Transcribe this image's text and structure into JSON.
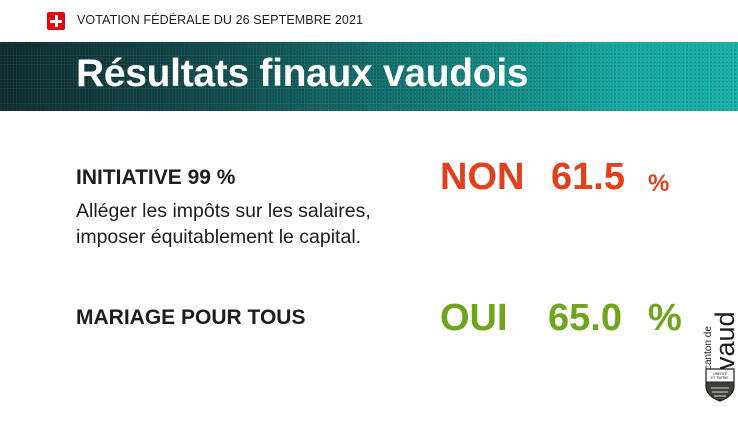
{
  "header": {
    "label": "VOTATION FÉDÉRALE DU 26 SEPTEMBRE 2021",
    "flag_icon": "swiss-flag-icon"
  },
  "banner": {
    "title": "Résultats finaux vaudois"
  },
  "votes": [
    {
      "title": "INITIATIVE 99 %",
      "subtitle_line1": "Alléger les impôts sur les salaires,",
      "subtitle_line2": "imposer équitablement le capital.",
      "result": "NON",
      "percent_value": "61.5",
      "percent_sign": "%",
      "color": "#e2401c"
    },
    {
      "title": "MARIAGE POUR TOUS",
      "result": "OUI",
      "percent_value": "65.0",
      "percent_sign": "%",
      "color": "#6fa51c"
    }
  ],
  "logo": {
    "canton": "canton de",
    "name": "vaud",
    "motto_line1": "LIBERTÉ",
    "motto_line2": "ET PATRIE"
  },
  "colors": {
    "accent_teal": "#13a8a0",
    "no_red": "#e2401c",
    "yes_green": "#6fa51c",
    "swiss_red": "#e30613"
  }
}
